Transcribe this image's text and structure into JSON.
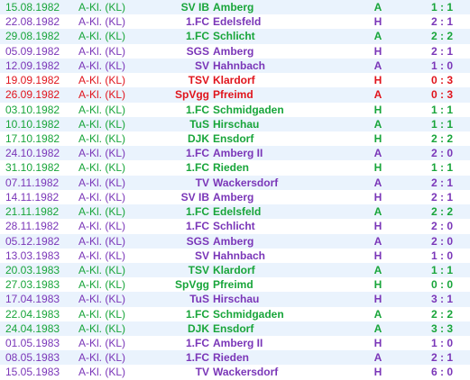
{
  "matches": [
    {
      "date": "15.08.1982",
      "league": "A-Kl. (KL)",
      "club": "SV IB",
      "team": "Amberg",
      "venue": "A",
      "score": "1 : 1",
      "color": "green"
    },
    {
      "date": "22.08.1982",
      "league": "A-Kl. (KL)",
      "club": "1.FC",
      "team": "Edelsfeld",
      "venue": "H",
      "score": "2 : 1",
      "color": "purple"
    },
    {
      "date": "29.08.1982",
      "league": "A-Kl. (KL)",
      "club": "1.FC",
      "team": "Schlicht",
      "venue": "A",
      "score": "2 : 2",
      "color": "green"
    },
    {
      "date": "05.09.1982",
      "league": "A-Kl. (KL)",
      "club": "SGS",
      "team": "Amberg",
      "venue": "H",
      "score": "2 : 1",
      "color": "purple"
    },
    {
      "date": "12.09.1982",
      "league": "A-Kl. (KL)",
      "club": "SV",
      "team": "Hahnbach",
      "venue": "A",
      "score": "1 : 0",
      "color": "purple"
    },
    {
      "date": "19.09.1982",
      "league": "A-Kl. (KL)",
      "club": "TSV",
      "team": "Klardorf",
      "venue": "H",
      "score": "0 : 3",
      "color": "red"
    },
    {
      "date": "26.09.1982",
      "league": "A-Kl. (KL)",
      "club": "SpVgg",
      "team": "Pfreimd",
      "venue": "A",
      "score": "0 : 3",
      "color": "red"
    },
    {
      "date": "03.10.1982",
      "league": "A-Kl. (KL)",
      "club": "1.FC",
      "team": "Schmidgaden",
      "venue": "H",
      "score": "1 : 1",
      "color": "green"
    },
    {
      "date": "10.10.1982",
      "league": "A-Kl. (KL)",
      "club": "TuS",
      "team": "Hirschau",
      "venue": "A",
      "score": "1 : 1",
      "color": "green"
    },
    {
      "date": "17.10.1982",
      "league": "A-Kl. (KL)",
      "club": "DJK",
      "team": "Ensdorf",
      "venue": "H",
      "score": "2 : 2",
      "color": "green"
    },
    {
      "date": "24.10.1982",
      "league": "A-Kl. (KL)",
      "club": "1.FC",
      "team": "Amberg II",
      "venue": "A",
      "score": "2 : 0",
      "color": "purple"
    },
    {
      "date": "31.10.1982",
      "league": "A-Kl. (KL)",
      "club": "1.FC",
      "team": "Rieden",
      "venue": "H",
      "score": "1 : 1",
      "color": "green"
    },
    {
      "date": "07.11.1982",
      "league": "A-Kl. (KL)",
      "club": "TV",
      "team": "Wackersdorf",
      "venue": "A",
      "score": "2 : 1",
      "color": "purple"
    },
    {
      "date": "14.11.1982",
      "league": "A-Kl. (KL)",
      "club": "SV IB",
      "team": "Amberg",
      "venue": "H",
      "score": "2 : 1",
      "color": "purple"
    },
    {
      "date": "21.11.1982",
      "league": "A-Kl. (KL)",
      "club": "1.FC",
      "team": "Edelsfeld",
      "venue": "A",
      "score": "2 : 2",
      "color": "green"
    },
    {
      "date": "28.11.1982",
      "league": "A-Kl. (KL)",
      "club": "1.FC",
      "team": "Schlicht",
      "venue": "H",
      "score": "2 : 0",
      "color": "purple"
    },
    {
      "date": "05.12.1982",
      "league": "A-Kl. (KL)",
      "club": "SGS",
      "team": "Amberg",
      "venue": "A",
      "score": "2 : 0",
      "color": "purple"
    },
    {
      "date": "13.03.1983",
      "league": "A-Kl. (KL)",
      "club": "SV",
      "team": "Hahnbach",
      "venue": "H",
      "score": "1 : 0",
      "color": "purple"
    },
    {
      "date": "20.03.1983",
      "league": "A-Kl. (KL)",
      "club": "TSV",
      "team": "Klardorf",
      "venue": "A",
      "score": "1 : 1",
      "color": "green"
    },
    {
      "date": "27.03.1983",
      "league": "A-Kl. (KL)",
      "club": "SpVgg",
      "team": "Pfreimd",
      "venue": "H",
      "score": "0 : 0",
      "color": "green"
    },
    {
      "date": "17.04.1983",
      "league": "A-Kl. (KL)",
      "club": "TuS",
      "team": "Hirschau",
      "venue": "H",
      "score": "3 : 1",
      "color": "purple"
    },
    {
      "date": "22.04.1983",
      "league": "A-Kl. (KL)",
      "club": "1.FC",
      "team": "Schmidgaden",
      "venue": "A",
      "score": "2 : 2",
      "color": "green"
    },
    {
      "date": "24.04.1983",
      "league": "A-Kl. (KL)",
      "club": "DJK",
      "team": "Ensdorf",
      "venue": "A",
      "score": "3 : 3",
      "color": "green"
    },
    {
      "date": "01.05.1983",
      "league": "A-Kl. (KL)",
      "club": "1.FC",
      "team": "Amberg II",
      "venue": "H",
      "score": "1 : 0",
      "color": "purple"
    },
    {
      "date": "08.05.1983",
      "league": "A-Kl. (KL)",
      "club": "1.FC",
      "team": "Rieden",
      "venue": "A",
      "score": "2 : 1",
      "color": "purple"
    },
    {
      "date": "15.05.1983",
      "league": "A-Kl. (KL)",
      "club": "TV",
      "team": "Wackersdorf",
      "venue": "H",
      "score": "6 : 0",
      "color": "purple"
    }
  ],
  "colors": {
    "green": "#18a53a",
    "purple": "#7a36b8",
    "red": "#e0141c",
    "row_alt": "#eaf3fd"
  }
}
